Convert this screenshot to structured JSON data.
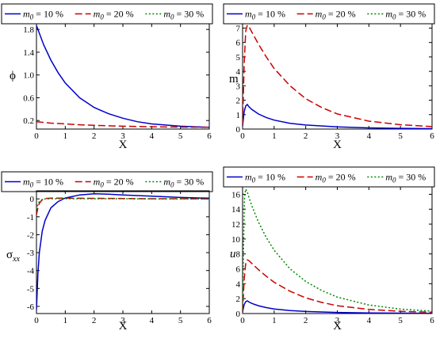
{
  "chart_data": [
    {
      "type": "line",
      "xlabel": "X",
      "ylabel": "ϕ",
      "xlim": [
        0,
        6
      ],
      "ylim": [
        0.05,
        1.9
      ],
      "xticks": [
        "0",
        "1",
        "2",
        "3",
        "4",
        "5",
        "6"
      ],
      "yticks": [
        0.2,
        0.6,
        1.0,
        1.4,
        1.8
      ],
      "ytick_labels": [
        "0.2",
        "0.6",
        "1.0",
        "1.4",
        "1.8"
      ],
      "legend": [
        {
          "label": "m0 = 10 %",
          "sub_base": "m",
          "sub": "0",
          "rest": " = 10 %",
          "color": "#0000cc",
          "dash": "solid"
        },
        {
          "label": "m0 = 20 %",
          "sub_base": "m",
          "sub": "0",
          "rest": " = 20 %",
          "color": "#cc0000",
          "dash": "dashed"
        },
        {
          "label": "m0 = 30 %",
          "sub_base": "m",
          "sub": "0",
          "rest": " = 30 %",
          "color": "#008800",
          "dash": "dotted"
        }
      ],
      "series": [
        {
          "name": "m0 = 10 %",
          "color": "#0000cc",
          "dash": "solid",
          "x": [
            0,
            0.25,
            0.5,
            0.75,
            1,
            1.5,
            2,
            2.5,
            3,
            3.5,
            4,
            5,
            6
          ],
          "y": [
            1.87,
            1.53,
            1.26,
            1.04,
            0.86,
            0.6,
            0.43,
            0.32,
            0.24,
            0.18,
            0.14,
            0.1,
            0.08
          ]
        },
        {
          "name": "m0 = 20 %",
          "color": "#cc0000",
          "dash": "dashed",
          "x": [
            0,
            0.5,
            1,
            1.5,
            2,
            3,
            4,
            5,
            6
          ],
          "y": [
            0.18,
            0.155,
            0.14,
            0.125,
            0.115,
            0.1,
            0.09,
            0.085,
            0.08
          ]
        }
      ]
    },
    {
      "type": "line",
      "xlabel": "X",
      "ylabel": "m",
      "xlim": [
        0,
        6
      ],
      "ylim": [
        0,
        7.3
      ],
      "xticks": [
        "0",
        "1",
        "2",
        "3",
        "4",
        "5",
        "6"
      ],
      "yticks": [
        0,
        1,
        2,
        3,
        4,
        5,
        6,
        7
      ],
      "ytick_labels": [
        "0",
        "1",
        "2",
        "3",
        "4",
        "5",
        "6",
        "7"
      ],
      "legend": [
        {
          "label": "m0 = 10 %",
          "sub_base": "m",
          "sub": "0",
          "rest": " = 10 %",
          "color": "#0000cc",
          "dash": "solid"
        },
        {
          "label": "m0 = 20 %",
          "sub_base": "m",
          "sub": "0",
          "rest": " = 20 %",
          "color": "#cc0000",
          "dash": "dashed"
        },
        {
          "label": "m0 = 30 %",
          "sub_base": "m",
          "sub": "0",
          "rest": " = 30 %",
          "color": "#008800",
          "dash": "dotted"
        }
      ],
      "series": [
        {
          "name": "m0 = 10 %",
          "color": "#0000cc",
          "dash": "solid",
          "x": [
            0,
            0.05,
            0.1,
            0.15,
            0.2,
            0.3,
            0.5,
            0.75,
            1,
            1.5,
            2,
            3,
            4,
            5,
            6
          ],
          "y": [
            0.2,
            1.2,
            1.6,
            1.7,
            1.55,
            1.35,
            1.05,
            0.8,
            0.62,
            0.4,
            0.28,
            0.15,
            0.08,
            0.05,
            0.03
          ]
        },
        {
          "name": "m0 = 20 %",
          "color": "#cc0000",
          "dash": "dashed",
          "x": [
            0,
            0.05,
            0.1,
            0.15,
            0.2,
            0.3,
            0.5,
            0.75,
            1,
            1.5,
            2,
            2.5,
            3,
            4,
            5,
            6
          ],
          "y": [
            0.3,
            4.5,
            6.8,
            7.2,
            7.1,
            6.7,
            5.9,
            5.0,
            4.2,
            3.0,
            2.1,
            1.5,
            1.05,
            0.55,
            0.3,
            0.17
          ]
        }
      ]
    },
    {
      "type": "line",
      "xlabel": "X",
      "ylabel": "σ",
      "ylabel_sub": "xx",
      "xlim": [
        0,
        6
      ],
      "ylim": [
        -6.4,
        0.45
      ],
      "xticks": [
        "0",
        "1",
        "2",
        "3",
        "4",
        "5",
        "6"
      ],
      "yticks": [
        0,
        -1,
        -2,
        -3,
        -4,
        -5,
        -6
      ],
      "ytick_labels": [
        "0",
        "-1",
        "-2",
        "-3",
        "-4",
        "-5",
        "-6"
      ],
      "legend": [
        {
          "label": "m0 = 10 %",
          "sub_base": "m",
          "sub": "0",
          "rest": " = 10 %",
          "color": "#0000cc",
          "dash": "solid"
        },
        {
          "label": "m0 = 20 %",
          "sub_base": "m",
          "sub": "0",
          "rest": " = 20 %",
          "color": "#cc0000",
          "dash": "dashed"
        },
        {
          "label": "m0 = 30 %",
          "sub_base": "m",
          "sub": "0",
          "rest": " = 30 %",
          "color": "#008800",
          "dash": "dotted"
        }
      ],
      "series": [
        {
          "name": "m0 = 10 %",
          "color": "#0000cc",
          "dash": "solid",
          "x": [
            0,
            0.05,
            0.1,
            0.2,
            0.3,
            0.5,
            0.75,
            1,
            1.5,
            2,
            2.5,
            3,
            4,
            5,
            6
          ],
          "y": [
            -6.2,
            -4.2,
            -3.0,
            -1.8,
            -1.2,
            -0.5,
            -0.15,
            0.05,
            0.22,
            0.28,
            0.26,
            0.22,
            0.15,
            0.08,
            0.04
          ]
        },
        {
          "name": "m0 = 20 %",
          "color": "#cc0000",
          "dash": "dashed",
          "x": [
            0,
            0.05,
            0.1,
            0.2,
            0.3,
            0.5,
            1,
            2,
            3,
            4,
            5,
            6
          ],
          "y": [
            -0.9,
            -0.5,
            -0.25,
            -0.05,
            0.02,
            0.04,
            0.04,
            0.03,
            0.02,
            0.01,
            0.01,
            0.0
          ]
        },
        {
          "name": "m0 = 30 %",
          "color": "#008800",
          "dash": "dotted",
          "x": [
            0,
            0.05,
            0.1,
            0.2,
            0.3,
            0.5,
            1,
            2,
            3,
            4,
            5,
            6
          ],
          "y": [
            -0.6,
            -0.3,
            -0.15,
            -0.03,
            0.0,
            0.01,
            0.01,
            0.01,
            0.01,
            0.0,
            0.0,
            0.0
          ]
        }
      ]
    },
    {
      "type": "line",
      "xlabel": "X",
      "ylabel": "u",
      "xlim": [
        0,
        6
      ],
      "ylim": [
        0,
        17
      ],
      "xticks": [
        "0",
        "1",
        "2",
        "3",
        "4",
        "5",
        "6"
      ],
      "yticks": [
        0,
        2,
        4,
        6,
        8,
        10,
        12,
        14,
        16
      ],
      "ytick_labels": [
        "0",
        "2",
        "4",
        "6",
        "8",
        "10",
        "12",
        "14",
        "16"
      ],
      "legend": [
        {
          "label": "m0 = 10 %",
          "sub_base": "m",
          "sub": "0",
          "rest": " = 10 %",
          "color": "#0000cc",
          "dash": "solid"
        },
        {
          "label": "m0 = 20 %",
          "sub_base": "m",
          "sub": "0",
          "rest": " = 20 %",
          "color": "#cc0000",
          "dash": "dashed"
        },
        {
          "label": "m0 = 30 %",
          "sub_base": "m",
          "sub": "0",
          "rest": " = 30 %",
          "color": "#008800",
          "dash": "dotted"
        }
      ],
      "series": [
        {
          "name": "m0 = 10 %",
          "color": "#0000cc",
          "dash": "solid",
          "x": [
            0,
            0.05,
            0.1,
            0.15,
            0.2,
            0.3,
            0.5,
            0.75,
            1,
            1.5,
            2,
            3,
            4,
            5,
            6
          ],
          "y": [
            0.2,
            1.2,
            1.6,
            1.7,
            1.55,
            1.35,
            1.05,
            0.8,
            0.62,
            0.4,
            0.28,
            0.15,
            0.08,
            0.05,
            0.03
          ]
        },
        {
          "name": "m0 = 20 %",
          "color": "#cc0000",
          "dash": "dashed",
          "x": [
            0,
            0.05,
            0.1,
            0.15,
            0.2,
            0.3,
            0.5,
            0.75,
            1,
            1.5,
            2,
            2.5,
            3,
            4,
            5,
            6
          ],
          "y": [
            0.3,
            4.5,
            6.8,
            7.2,
            7.1,
            6.7,
            5.9,
            5.0,
            4.2,
            3.0,
            2.1,
            1.5,
            1.05,
            0.55,
            0.3,
            0.17
          ]
        },
        {
          "name": "m0 = 30 %",
          "color": "#008800",
          "dash": "dotted",
          "x": [
            0,
            0.03,
            0.06,
            0.1,
            0.15,
            0.2,
            0.3,
            0.5,
            0.75,
            1,
            1.5,
            2,
            2.5,
            3,
            4,
            5,
            6
          ],
          "y": [
            0.5,
            9.0,
            15.5,
            16.7,
            16.3,
            15.6,
            14.4,
            12.3,
            10.2,
            8.5,
            6.0,
            4.3,
            3.1,
            2.2,
            1.15,
            0.6,
            0.32
          ]
        }
      ]
    }
  ]
}
